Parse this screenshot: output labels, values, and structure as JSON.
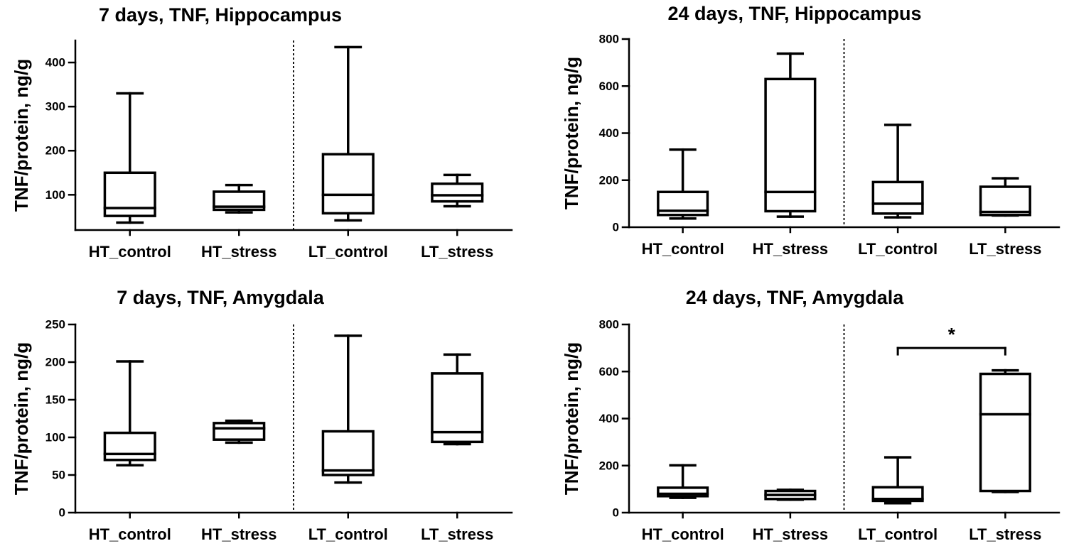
{
  "chart_data": [
    {
      "type": "box",
      "title": "7 days, TNF, Hippocampus",
      "xlabel": "",
      "ylabel": "TNF/protein, ng/g",
      "ylim": [
        20,
        450
      ],
      "yticks": [
        100,
        200,
        300,
        400
      ],
      "categories": [
        "HT_control",
        "HT_stress",
        "LT_control",
        "LT_stress"
      ],
      "boxes": [
        {
          "name": "HT_control",
          "min": 37,
          "q1": 52,
          "median": 70,
          "q3": 150,
          "max": 330
        },
        {
          "name": "HT_stress",
          "min": 60,
          "q1": 66,
          "median": 73,
          "q3": 107,
          "max": 122
        },
        {
          "name": "LT_control",
          "min": 42,
          "q1": 58,
          "median": 100,
          "q3": 192,
          "max": 435
        },
        {
          "name": "LT_stress",
          "min": 74,
          "q1": 85,
          "median": 99,
          "q3": 125,
          "max": 145
        }
      ],
      "separator_after": 2,
      "significance": []
    },
    {
      "type": "box",
      "title": "24 days, TNF, Hippocampus",
      "xlabel": "",
      "ylabel": "TNF/protein, ng/g",
      "ylim": [
        0,
        800
      ],
      "yticks": [
        0,
        200,
        400,
        600,
        800
      ],
      "categories": [
        "HT_control",
        "HT_stress",
        "LT_control",
        "LT_stress"
      ],
      "boxes": [
        {
          "name": "HT_control",
          "min": 37,
          "q1": 52,
          "median": 70,
          "q3": 150,
          "max": 330
        },
        {
          "name": "HT_stress",
          "min": 45,
          "q1": 68,
          "median": 150,
          "q3": 630,
          "max": 738
        },
        {
          "name": "LT_control",
          "min": 42,
          "q1": 58,
          "median": 100,
          "q3": 192,
          "max": 435
        },
        {
          "name": "LT_stress",
          "min": 50,
          "q1": 52,
          "median": 65,
          "q3": 172,
          "max": 208
        }
      ],
      "separator_after": 2,
      "significance": []
    },
    {
      "type": "box",
      "title": "7 days, TNF, Amygdala",
      "xlabel": "",
      "ylabel": "TNF/protein, ng/g",
      "ylim": [
        0,
        250
      ],
      "yticks": [
        0,
        50,
        100,
        150,
        200,
        250
      ],
      "categories": [
        "HT_control",
        "HT_stress",
        "LT_control",
        "LT_stress"
      ],
      "boxes": [
        {
          "name": "HT_control",
          "min": 63,
          "q1": 70,
          "median": 78,
          "q3": 106,
          "max": 201
        },
        {
          "name": "HT_stress",
          "min": 93,
          "q1": 97,
          "median": 112,
          "q3": 119,
          "max": 122
        },
        {
          "name": "LT_control",
          "min": 40,
          "q1": 50,
          "median": 56,
          "q3": 108,
          "max": 235
        },
        {
          "name": "LT_stress",
          "min": 91,
          "q1": 94,
          "median": 107,
          "q3": 185,
          "max": 210
        }
      ],
      "separator_after": 2,
      "significance": []
    },
    {
      "type": "box",
      "title": "24 days, TNF, Amygdala",
      "xlabel": "",
      "ylabel": "TNF/protein, ng/g",
      "ylim": [
        0,
        800
      ],
      "yticks": [
        0,
        200,
        400,
        600,
        800
      ],
      "categories": [
        "HT_control",
        "HT_stress",
        "LT_control",
        "LT_stress"
      ],
      "boxes": [
        {
          "name": "HT_control",
          "min": 63,
          "q1": 70,
          "median": 80,
          "q3": 106,
          "max": 201
        },
        {
          "name": "HT_stress",
          "min": 55,
          "q1": 58,
          "median": 75,
          "q3": 92,
          "max": 97
        },
        {
          "name": "LT_control",
          "min": 40,
          "q1": 50,
          "median": 58,
          "q3": 108,
          "max": 235
        },
        {
          "name": "LT_stress",
          "min": 88,
          "q1": 92,
          "median": 418,
          "q3": 590,
          "max": 605
        }
      ],
      "separator_after": 2,
      "significance": [
        {
          "from": "LT_control",
          "to": "LT_stress",
          "label": "*",
          "y": 700
        }
      ]
    }
  ]
}
